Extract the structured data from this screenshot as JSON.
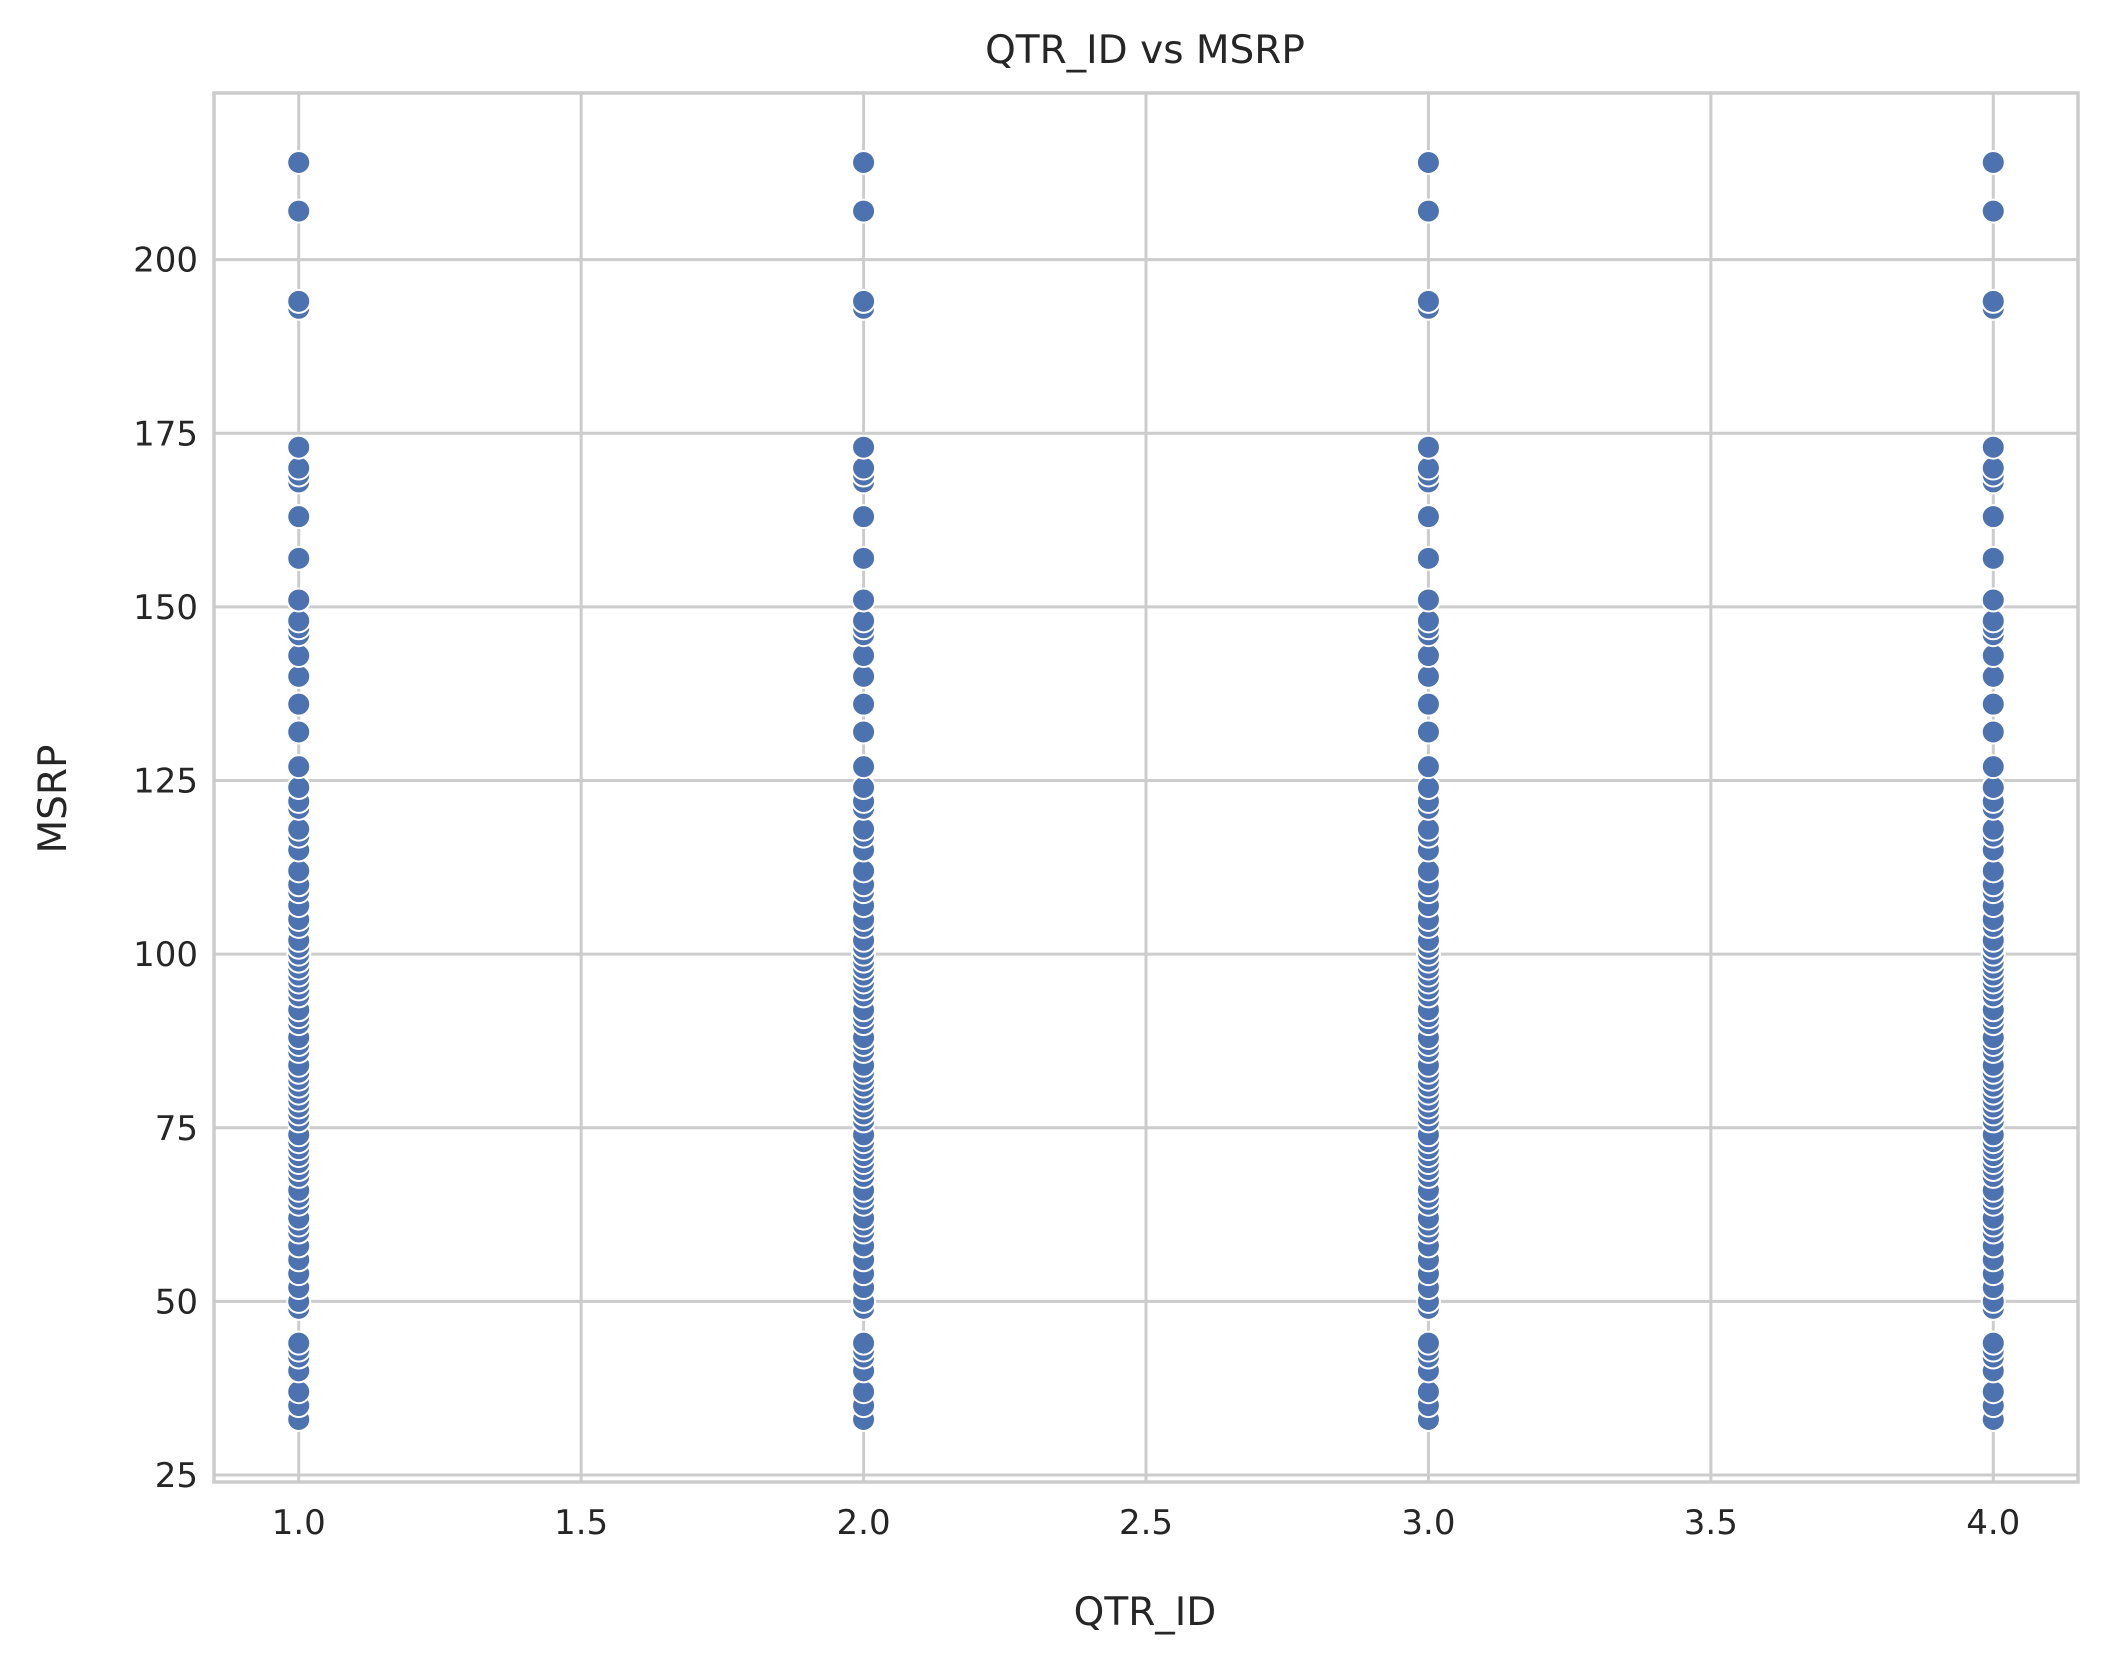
{
  "chart_data": {
    "type": "scatter",
    "title": "QTR_ID vs MSRP",
    "xlabel": "QTR_ID",
    "ylabel": "MSRP",
    "xlim": [
      0.85,
      4.15
    ],
    "ylim": [
      24,
      224
    ],
    "x_ticks": [
      1.0,
      1.5,
      2.0,
      2.5,
      3.0,
      3.5,
      4.0
    ],
    "x_tick_labels": [
      "1.0",
      "1.5",
      "2.0",
      "2.5",
      "3.0",
      "3.5",
      "4.0"
    ],
    "y_ticks": [
      25,
      50,
      75,
      100,
      125,
      150,
      175,
      200
    ],
    "y_tick_labels": [
      "25",
      "50",
      "75",
      "100",
      "125",
      "150",
      "175",
      "200"
    ],
    "grid": true,
    "marker_color": "#4c72b0",
    "x_values": [
      1,
      2,
      3,
      4
    ],
    "msrp_values": [
      33,
      35,
      37,
      40,
      42,
      43,
      44,
      49,
      50,
      52,
      54,
      56,
      58,
      60,
      61,
      62,
      64,
      65,
      66,
      68,
      69,
      70,
      71,
      72,
      73,
      74,
      76,
      77,
      78,
      79,
      80,
      81,
      82,
      83,
      84,
      86,
      87,
      88,
      90,
      91,
      92,
      94,
      95,
      96,
      97,
      98,
      99,
      100,
      101,
      102,
      104,
      105,
      107,
      109,
      110,
      112,
      115,
      117,
      118,
      121,
      122,
      124,
      127,
      132,
      136,
      140,
      143,
      146,
      147,
      148,
      151,
      157,
      163,
      168,
      169,
      170,
      173,
      193,
      194,
      207,
      214
    ]
  }
}
